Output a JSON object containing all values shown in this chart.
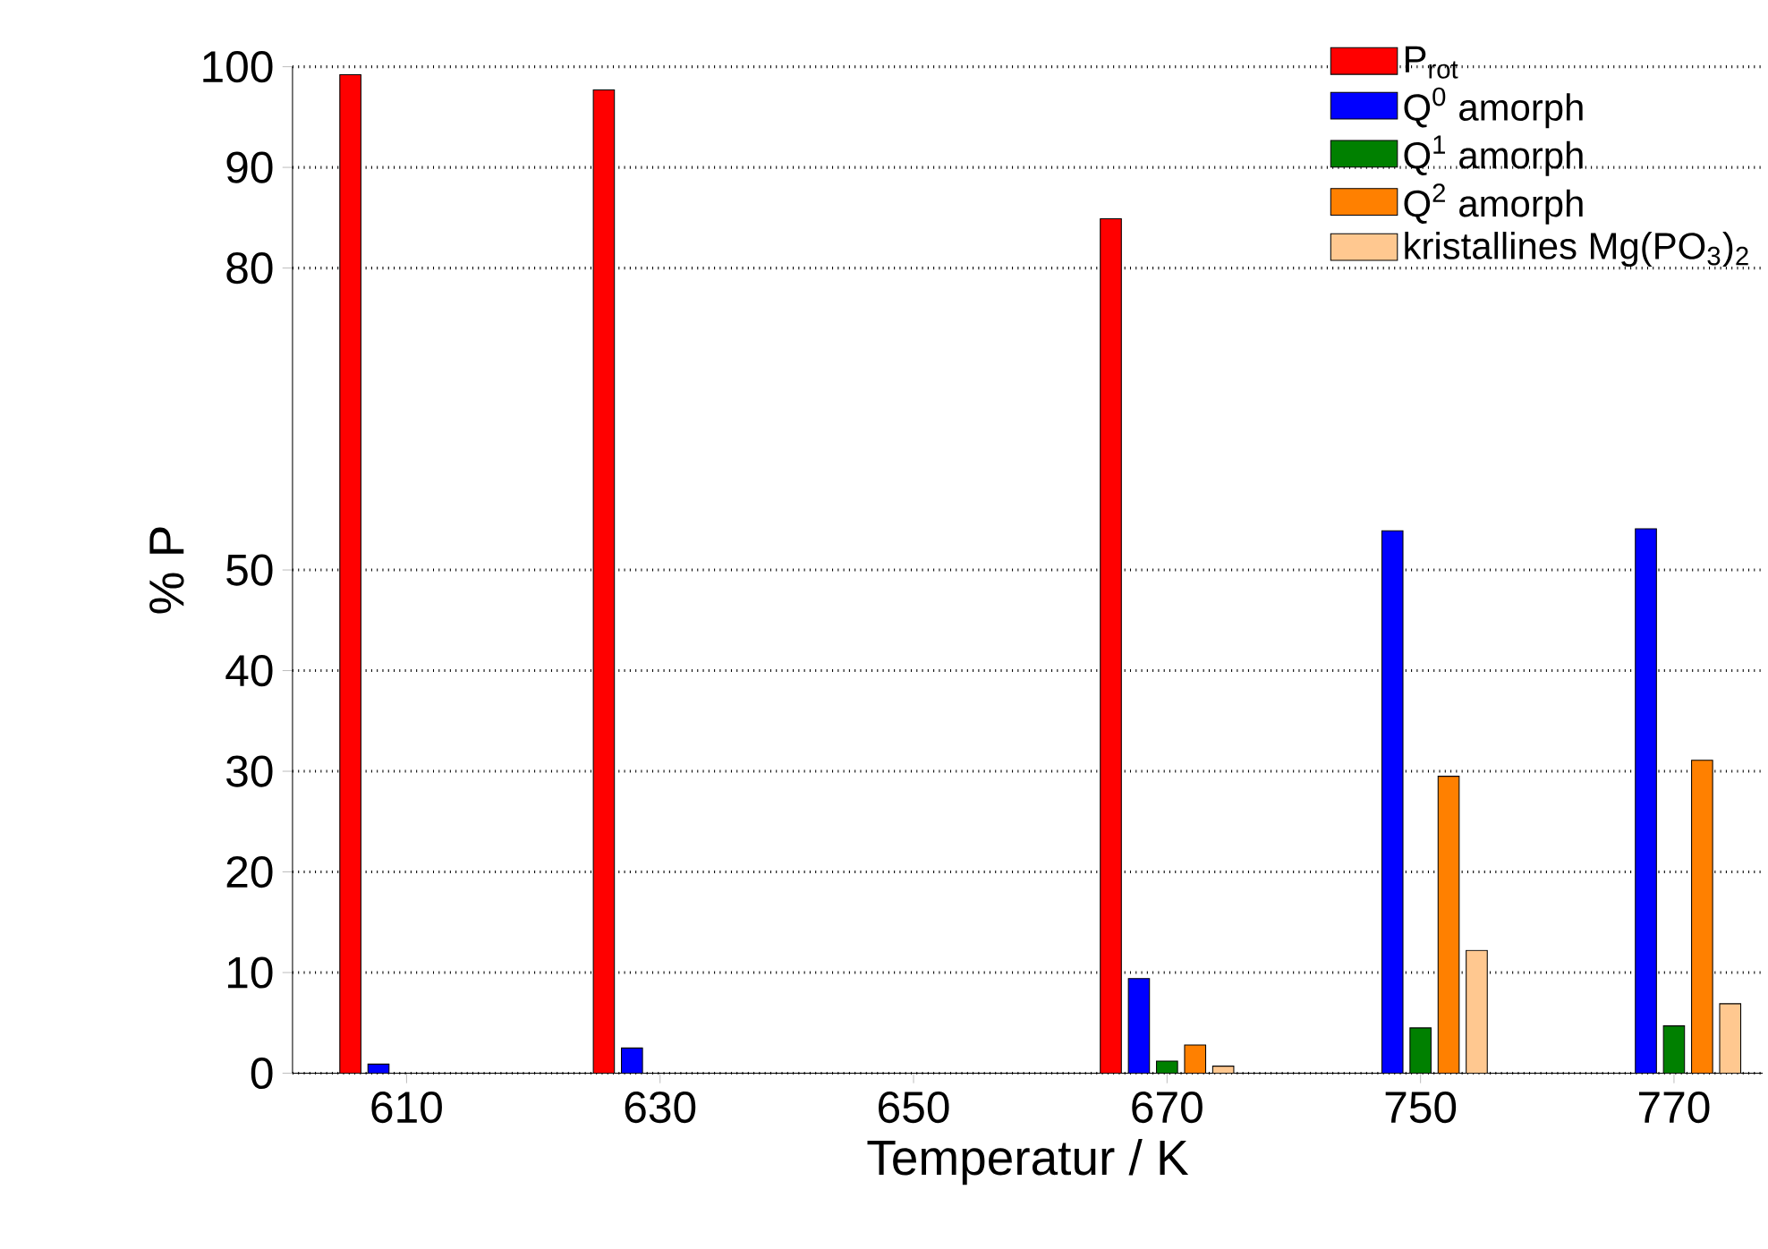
{
  "chart_data": {
    "type": "bar",
    "xlabel": "Temperatur / K",
    "ylabel": "% P",
    "categories": [
      "610",
      "630",
      "650",
      "670",
      "750",
      "770"
    ],
    "ylim": [
      0,
      100
    ],
    "yticks": [
      0,
      10,
      20,
      30,
      40,
      50,
      80,
      90,
      100
    ],
    "grid": "y",
    "legend": "top right",
    "series": [
      {
        "name": "P$_{rot}$",
        "color": "#ff0000",
        "values": [
          99.2,
          97.7,
          null,
          84.9,
          null,
          null
        ]
      },
      {
        "name": "Q$^{0}$ amorph",
        "color": "#0000ff",
        "values": [
          0.9,
          2.5,
          null,
          9.4,
          53.9,
          54.1
        ]
      },
      {
        "name": "Q$^{1}$ amorph",
        "color": "#008000",
        "values": [
          null,
          null,
          null,
          1.2,
          4.5,
          4.7
        ]
      },
      {
        "name": "Q$^{2}$ amorph",
        "color": "#ff8000",
        "values": [
          null,
          null,
          null,
          2.8,
          29.5,
          31.1
        ]
      },
      {
        "name": "kristallines Mg(PO$_{3}$)$_{2}$",
        "color": "#ffc890",
        "values": [
          null,
          null,
          null,
          0.7,
          12.2,
          6.9
        ]
      }
    ]
  }
}
